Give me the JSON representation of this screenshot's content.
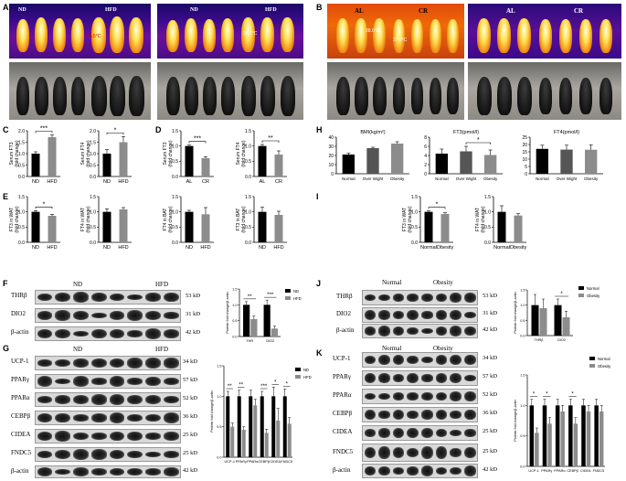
{
  "panel_letters": {
    "A": "A",
    "B": "B",
    "C": "C",
    "D": "D",
    "E": "E",
    "F": "F",
    "G": "G",
    "H": "H",
    "I": "I",
    "J": "J",
    "K": "K"
  },
  "panel_A": {
    "left_nd": "ND",
    "left_hfd": "HFD",
    "right_nd": "ND",
    "right_hfd": "HFD",
    "temp1": "36.5°C",
    "temp2": "36.7°C"
  },
  "panel_B": {
    "left_al": "AL",
    "left_cr": "CR",
    "right_al": "AL",
    "right_cr": "CR",
    "temp1": "38.0°C",
    "temp2": "37.0°C"
  },
  "colors": {
    "black_bar": "#000000",
    "grey_bar": "#8c8c8c",
    "thermal_cool": "#3a0a8a",
    "thermal_hot": "#f08a12"
  },
  "blot_F": {
    "groups": [
      "ND",
      "HFD"
    ],
    "rows": [
      "THRβ",
      "DIO2",
      "β-actin"
    ],
    "kd": [
      "53 kD",
      "31 kD",
      "42 kD"
    ]
  },
  "blot_G": {
    "groups": [
      "ND",
      "HFD"
    ],
    "rows": [
      "UCP-1",
      "PPARγ",
      "PPARα",
      "CEBPβ",
      "CIDEA",
      "FNDC5",
      "β-actin"
    ],
    "kd": [
      "34 kD",
      "57 kD",
      "52 kD",
      "36 kD",
      "25 kD",
      "25 kD",
      "42 kD"
    ]
  },
  "blot_J": {
    "groups": [
      "Normal",
      "Obesity"
    ],
    "rows": [
      "THRβ",
      "DIO2",
      "β-actin"
    ],
    "kd": [
      "53 kD",
      "31 kD",
      "42 kD"
    ]
  },
  "blot_K": {
    "groups": [
      "Normal",
      "Obesity"
    ],
    "rows": [
      "UCP-1",
      "PPARγ",
      "PPARα",
      "CEBPβ",
      "CIDEA",
      "FNDC5",
      "β-actin"
    ],
    "kd": [
      "34 kD",
      "57 kD",
      "52 kD",
      "36 kD",
      "25 kD",
      "25 kD",
      "42 kD"
    ]
  },
  "chart_data": [
    {
      "id": "C1",
      "type": "bar",
      "categories": [
        "ND",
        "HFD"
      ],
      "values": [
        1.0,
        1.72
      ],
      "errors": [
        0.08,
        0.1
      ],
      "ylabel": "Serum FT3\n(fold change)",
      "ylim": [
        0,
        2
      ],
      "yticks": [
        "0.0",
        "0.5",
        "1.0",
        "1.5",
        "2.0"
      ],
      "sig": "***"
    },
    {
      "id": "C2",
      "type": "bar",
      "categories": [
        "ND",
        "HFD"
      ],
      "values": [
        1.0,
        1.5
      ],
      "errors": [
        0.18,
        0.25
      ],
      "ylabel": "Serum FT4\n(fold change)",
      "ylim": [
        0,
        2
      ],
      "yticks": [
        "0.0",
        "0.5",
        "1.0",
        "1.5",
        "2.0"
      ],
      "sig": "*"
    },
    {
      "id": "D1",
      "type": "bar",
      "categories": [
        "AL",
        "CR"
      ],
      "values": [
        1.0,
        0.6
      ],
      "errors": [
        0.03,
        0.05
      ],
      "ylabel": "Serum FT3\n(fold change)",
      "ylim": [
        0,
        1.5
      ],
      "yticks": [
        "0.0",
        "0.5",
        "1.0",
        "1.5"
      ],
      "sig": "***"
    },
    {
      "id": "D2",
      "type": "bar",
      "categories": [
        "AL",
        "CR"
      ],
      "values": [
        1.0,
        0.72
      ],
      "errors": [
        0.05,
        0.12
      ],
      "ylabel": "Serum FT4\n(fold change)",
      "ylim": [
        0,
        1.5
      ],
      "yticks": [
        "0.0",
        "0.5",
        "1.0",
        "1.5"
      ],
      "sig": "**"
    },
    {
      "id": "E1",
      "type": "bar",
      "categories": [
        "ND",
        "HFD"
      ],
      "values": [
        1.0,
        0.87
      ],
      "errors": [
        0.04,
        0.05
      ],
      "ylabel": "FT3 in WAT\n(fold change)",
      "ylim": [
        0,
        1.5
      ],
      "yticks": [
        "0.0",
        "0.5",
        "1.0",
        "1.5"
      ],
      "sig": "*"
    },
    {
      "id": "E2",
      "type": "bar",
      "categories": [
        "ND",
        "HFD"
      ],
      "values": [
        1.0,
        1.08
      ],
      "errors": [
        0.1,
        0.06
      ],
      "ylabel": "FT4 in WAT\n(fold change)",
      "ylim": [
        0,
        1.5
      ],
      "yticks": [
        "0.0",
        "0.5",
        "1.0",
        "1.5"
      ],
      "sig": ""
    },
    {
      "id": "E3",
      "type": "bar",
      "categories": [
        "ND",
        "HFD"
      ],
      "values": [
        1.0,
        0.92
      ],
      "errors": [
        0.05,
        0.22
      ],
      "ylabel": "FT4 in BAT\n(fold change)",
      "ylim": [
        0,
        1.5
      ],
      "yticks": [
        "0.0",
        "0.5",
        "1.0",
        "1.5"
      ],
      "sig": ""
    },
    {
      "id": "E4",
      "type": "bar",
      "categories": [
        "ND",
        "HFD"
      ],
      "values": [
        1.0,
        0.9
      ],
      "errors": [
        0.15,
        0.12
      ],
      "ylabel": "FT3 in BAT\n(fold change)",
      "ylim": [
        0,
        1.5
      ],
      "yticks": [
        "0.0",
        "0.5",
        "1.0",
        "1.5"
      ],
      "sig": ""
    },
    {
      "id": "H1",
      "type": "bar",
      "title": "BMI(kg/m²)",
      "categories": [
        "Normal",
        "Over Wight",
        "Obesity"
      ],
      "values": [
        21,
        28,
        33
      ],
      "errors": [
        1.5,
        1,
        2
      ],
      "ylim": [
        0,
        40
      ],
      "yticks": [
        "0",
        "10",
        "20",
        "30",
        "40"
      ],
      "sig": ""
    },
    {
      "id": "H2",
      "type": "bar",
      "title": "FT3(pmol/l)",
      "categories": [
        "Normal",
        "Over Wight",
        "Obesity"
      ],
      "values": [
        4.4,
        4.9,
        4.1
      ],
      "errors": [
        1,
        1.1,
        1.1
      ],
      "ylim": [
        0,
        8
      ],
      "yticks": [
        "0",
        "2",
        "4",
        "6",
        "8"
      ],
      "sig": "*"
    },
    {
      "id": "H3",
      "type": "bar",
      "title": "FT4(pmol/l)",
      "categories": [
        "Normal",
        "Over Wight",
        "Obesity"
      ],
      "values": [
        17,
        16.5,
        16.4
      ],
      "errors": [
        2.5,
        3,
        3.3
      ],
      "ylim": [
        0,
        25
      ],
      "yticks": [
        "0",
        "5",
        "10",
        "15",
        "20",
        "25"
      ],
      "sig": ""
    },
    {
      "id": "I1",
      "type": "bar",
      "categories": [
        "Normal",
        "Obesity"
      ],
      "values": [
        1.0,
        0.93
      ],
      "errors": [
        0.03,
        0.04
      ],
      "ylabel": "FT3 in WAT\n(fold change)",
      "ylim": [
        0,
        1.5
      ],
      "yticks": [
        "0.0",
        "0.5",
        "1.0",
        "1.5"
      ],
      "sig": "*"
    },
    {
      "id": "I2",
      "type": "bar",
      "categories": [
        "Normal",
        "Obesity"
      ],
      "values": [
        1.0,
        0.88
      ],
      "errors": [
        0.2,
        0.06
      ],
      "ylabel": "FT4 in WAT\n(fold change)",
      "ylim": [
        0,
        1.5
      ],
      "yticks": [
        "0.0",
        "0.5",
        "1.0",
        "1.5"
      ],
      "sig": ""
    },
    {
      "id": "F_q",
      "type": "bar",
      "categories": [
        "THR",
        "DIO2"
      ],
      "series": [
        {
          "name": "ND",
          "values": [
            1.0,
            1.0
          ],
          "errors": [
            0.1,
            0.15
          ]
        },
        {
          "name": "HFD",
          "values": [
            0.55,
            0.25
          ],
          "errors": [
            0.1,
            0.08
          ]
        }
      ],
      "ylabel": "Protein fold change/β-actin",
      "ylim": [
        0,
        1.5
      ],
      "yticks": [
        "0.0",
        "0.5",
        "1.0",
        "1.5"
      ],
      "sigs": [
        "**",
        "***"
      ]
    },
    {
      "id": "G_q",
      "type": "bar",
      "categories": [
        "UCP-1",
        "PPARγ",
        "PPARα",
        "CEBPβ",
        "CIDEA",
        "FNDC5"
      ],
      "series": [
        {
          "name": "ND",
          "values": [
            1,
            1,
            1,
            1,
            1,
            1
          ],
          "errors": [
            0.08,
            0.1,
            0.1,
            0.08,
            0.15,
            0.12
          ]
        },
        {
          "name": "HFD",
          "values": [
            0.5,
            0.45,
            0.85,
            0.4,
            0.6,
            0.55
          ],
          "errors": [
            0.06,
            0.05,
            0.1,
            0.06,
            0.2,
            0.1
          ]
        }
      ],
      "ylabel": "Protein fold change/β-actin",
      "ylim": [
        0,
        1.5
      ],
      "yticks": [
        "0.0",
        "0.5",
        "1.0",
        "1.5"
      ],
      "sigs": [
        "**",
        "**",
        "",
        "***",
        "*",
        "*"
      ]
    },
    {
      "id": "J_q",
      "type": "bar",
      "categories": [
        "THRβ",
        "DIO2"
      ],
      "series": [
        {
          "name": "Normal",
          "values": [
            1.0,
            1.0
          ],
          "errors": [
            0.35,
            0.2
          ]
        },
        {
          "name": "Obesity",
          "values": [
            0.9,
            0.6
          ],
          "errors": [
            0.3,
            0.2
          ]
        }
      ],
      "ylabel": "Protein fold change/β-actin",
      "ylim": [
        0,
        1.5
      ],
      "yticks": [
        "0.0",
        "0.5",
        "1.0",
        "1.5"
      ],
      "sigs": [
        "",
        "*"
      ]
    },
    {
      "id": "K_q",
      "type": "bar",
      "categories": [
        "UCP-1",
        "PPARγ",
        "PPARα",
        "CEBPβ",
        "CIDEA",
        "FNDC5"
      ],
      "series": [
        {
          "name": "Normal",
          "values": [
            1,
            1,
            1,
            1,
            1,
            1
          ],
          "errors": [
            0.1,
            0.1,
            0.1,
            0.1,
            0.1,
            0.1
          ]
        },
        {
          "name": "Obesity",
          "values": [
            0.55,
            0.7,
            0.9,
            0.7,
            0.9,
            0.9
          ],
          "errors": [
            0.08,
            0.1,
            0.1,
            0.1,
            0.1,
            0.1
          ]
        }
      ],
      "ylabel": "Protein fold change/β-actin",
      "ylim": [
        0,
        1.5
      ],
      "yticks": [
        "0.0",
        "0.5",
        "1.0",
        "1.5"
      ],
      "sigs": [
        "*",
        "*",
        "",
        "*",
        "",
        ""
      ]
    }
  ]
}
